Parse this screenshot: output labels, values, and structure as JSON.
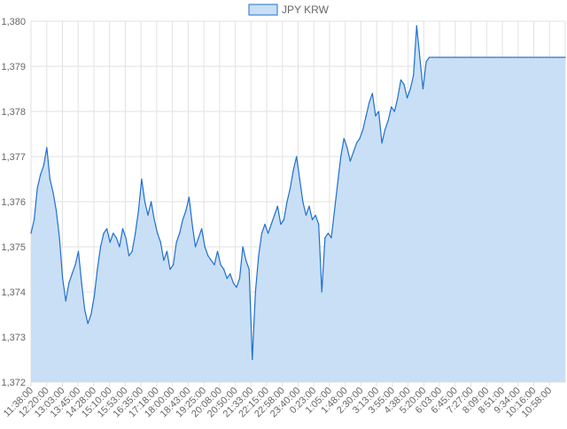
{
  "chart_data": {
    "type": "area",
    "legend": {
      "position": "top",
      "entries": [
        "JPY KRW"
      ]
    },
    "series": [
      {
        "name": "JPY KRW",
        "color": "#1f6fd1",
        "fill": "#c9dff5",
        "points": [
          [
            0,
            1375.3
          ],
          [
            1,
            1375.6
          ],
          [
            2,
            1376.3
          ],
          [
            3,
            1376.6
          ],
          [
            4,
            1376.8
          ],
          [
            5,
            1377.2
          ],
          [
            6,
            1376.5
          ],
          [
            7,
            1376.2
          ],
          [
            8,
            1375.8
          ],
          [
            9,
            1375.2
          ],
          [
            10,
            1374.3
          ],
          [
            11,
            1373.8
          ],
          [
            12,
            1374.2
          ],
          [
            13,
            1374.4
          ],
          [
            14,
            1374.6
          ],
          [
            15,
            1374.9
          ],
          [
            16,
            1374.2
          ],
          [
            17,
            1373.6
          ],
          [
            18,
            1373.3
          ],
          [
            19,
            1373.5
          ],
          [
            20,
            1373.9
          ],
          [
            21,
            1374.5
          ],
          [
            22,
            1375.0
          ],
          [
            23,
            1375.3
          ],
          [
            24,
            1375.4
          ],
          [
            25,
            1375.1
          ],
          [
            26,
            1375.3
          ],
          [
            27,
            1375.2
          ],
          [
            28,
            1375.0
          ],
          [
            29,
            1375.4
          ],
          [
            30,
            1375.2
          ],
          [
            31,
            1374.8
          ],
          [
            32,
            1374.9
          ],
          [
            33,
            1375.3
          ],
          [
            34,
            1375.8
          ],
          [
            35,
            1376.5
          ],
          [
            36,
            1376.0
          ],
          [
            37,
            1375.7
          ],
          [
            38,
            1376.0
          ],
          [
            39,
            1375.6
          ],
          [
            40,
            1375.3
          ],
          [
            41,
            1375.1
          ],
          [
            42,
            1374.7
          ],
          [
            43,
            1374.9
          ],
          [
            44,
            1374.5
          ],
          [
            45,
            1374.6
          ],
          [
            46,
            1375.1
          ],
          [
            47,
            1375.3
          ],
          [
            48,
            1375.6
          ],
          [
            49,
            1375.8
          ],
          [
            50,
            1376.1
          ],
          [
            51,
            1375.5
          ],
          [
            52,
            1375.0
          ],
          [
            53,
            1375.2
          ],
          [
            54,
            1375.4
          ],
          [
            55,
            1375.0
          ],
          [
            56,
            1374.8
          ],
          [
            57,
            1374.7
          ],
          [
            58,
            1374.6
          ],
          [
            59,
            1374.9
          ],
          [
            60,
            1374.6
          ],
          [
            61,
            1374.5
          ],
          [
            62,
            1374.3
          ],
          [
            63,
            1374.4
          ],
          [
            64,
            1374.2
          ],
          [
            65,
            1374.1
          ],
          [
            66,
            1374.3
          ],
          [
            67,
            1375.0
          ],
          [
            68,
            1374.7
          ],
          [
            69,
            1374.5
          ],
          [
            70,
            1372.5
          ],
          [
            71,
            1374.0
          ],
          [
            72,
            1374.8
          ],
          [
            73,
            1375.3
          ],
          [
            74,
            1375.5
          ],
          [
            75,
            1375.3
          ],
          [
            76,
            1375.5
          ],
          [
            77,
            1375.7
          ],
          [
            78,
            1375.9
          ],
          [
            79,
            1375.5
          ],
          [
            80,
            1375.6
          ],
          [
            81,
            1376.0
          ],
          [
            82,
            1376.3
          ],
          [
            83,
            1376.7
          ],
          [
            84,
            1377.0
          ],
          [
            85,
            1376.5
          ],
          [
            86,
            1376.0
          ],
          [
            87,
            1375.7
          ],
          [
            88,
            1375.9
          ],
          [
            89,
            1375.6
          ],
          [
            90,
            1375.7
          ],
          [
            91,
            1375.5
          ],
          [
            92,
            1374.0
          ],
          [
            93,
            1375.2
          ],
          [
            94,
            1375.3
          ],
          [
            95,
            1375.2
          ],
          [
            96,
            1375.8
          ],
          [
            97,
            1376.4
          ],
          [
            98,
            1377.0
          ],
          [
            99,
            1377.4
          ],
          [
            100,
            1377.2
          ],
          [
            101,
            1376.9
          ],
          [
            102,
            1377.1
          ],
          [
            103,
            1377.3
          ],
          [
            104,
            1377.4
          ],
          [
            105,
            1377.6
          ],
          [
            106,
            1377.9
          ],
          [
            107,
            1378.2
          ],
          [
            108,
            1378.4
          ],
          [
            109,
            1377.9
          ],
          [
            110,
            1378.0
          ],
          [
            111,
            1377.3
          ],
          [
            112,
            1377.6
          ],
          [
            113,
            1377.8
          ],
          [
            114,
            1378.1
          ],
          [
            115,
            1378.0
          ],
          [
            116,
            1378.3
          ],
          [
            117,
            1378.7
          ],
          [
            118,
            1378.6
          ],
          [
            119,
            1378.3
          ],
          [
            120,
            1378.5
          ],
          [
            121,
            1378.8
          ],
          [
            122,
            1379.9
          ],
          [
            123,
            1379.2
          ],
          [
            124,
            1378.5
          ],
          [
            125,
            1379.1
          ],
          [
            126,
            1379.2
          ],
          [
            127,
            1379.2
          ],
          [
            128,
            1379.2
          ],
          [
            129,
            1379.2
          ],
          [
            130,
            1379.2
          ],
          [
            131,
            1379.2
          ],
          [
            132,
            1379.2
          ],
          [
            133,
            1379.2
          ],
          [
            134,
            1379.2
          ],
          [
            135,
            1379.2
          ],
          [
            136,
            1379.2
          ],
          [
            137,
            1379.2
          ],
          [
            138,
            1379.2
          ],
          [
            139,
            1379.2
          ],
          [
            140,
            1379.2
          ],
          [
            141,
            1379.2
          ],
          [
            142,
            1379.2
          ],
          [
            143,
            1379.2
          ],
          [
            144,
            1379.2
          ],
          [
            145,
            1379.2
          ],
          [
            146,
            1379.2
          ],
          [
            147,
            1379.2
          ],
          [
            148,
            1379.2
          ],
          [
            149,
            1379.2
          ],
          [
            150,
            1379.2
          ],
          [
            151,
            1379.2
          ],
          [
            152,
            1379.2
          ],
          [
            153,
            1379.2
          ],
          [
            154,
            1379.2
          ],
          [
            155,
            1379.2
          ],
          [
            156,
            1379.2
          ],
          [
            157,
            1379.2
          ],
          [
            158,
            1379.2
          ],
          [
            159,
            1379.2
          ],
          [
            160,
            1379.2
          ],
          [
            161,
            1379.2
          ],
          [
            162,
            1379.2
          ],
          [
            163,
            1379.2
          ],
          [
            164,
            1379.2
          ],
          [
            165,
            1379.2
          ],
          [
            166,
            1379.2
          ],
          [
            167,
            1379.2
          ],
          [
            168,
            1379.2
          ],
          [
            169,
            1379.2
          ]
        ]
      }
    ],
    "x_tick_labels": [
      "11:38:00",
      "12:20:00",
      "13:03:00",
      "13:45:00",
      "14:28:00",
      "15:10:00",
      "15:53:00",
      "16:35:00",
      "17:18:00",
      "18:00:00",
      "18:43:00",
      "19:25:00",
      "20:08:00",
      "20:50:00",
      "21:33:00",
      "22:15:00",
      "22:58:00",
      "23:40:00",
      "0:23:00",
      "1:05:00",
      "1:48:00",
      "2:30:00",
      "3:13:00",
      "3:55:00",
      "4:38:00",
      "5:20:00",
      "6:03:00",
      "6:45:00",
      "7:27:00",
      "8:09:00",
      "8:51:00",
      "9:34:00",
      "10:16:00",
      "10:58:00"
    ],
    "y_ticks": [
      "1,380",
      "1,379",
      "1,378",
      "1,377",
      "1,376",
      "1,375",
      "1,374",
      "1,373",
      "1,372"
    ],
    "ylim": [
      1372,
      1380
    ],
    "x_count": 170,
    "grid": true
  }
}
